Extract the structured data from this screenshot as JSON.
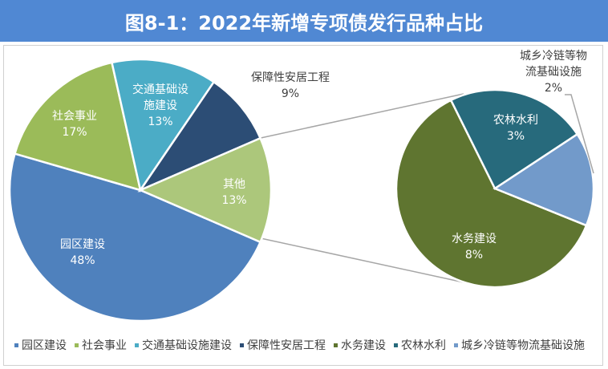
{
  "title": "图8-1：2022年新增专项债发行品种占比",
  "chart_data": {
    "type": "pie",
    "subtype": "pie-of-pie",
    "main": [
      {
        "name": "园区建设",
        "value": 48,
        "label": "48%",
        "color": "#4f81bd"
      },
      {
        "name": "社会事业",
        "value": 17,
        "label": "17%",
        "color": "#9bbb59"
      },
      {
        "name": "交通基础设施建设",
        "value": 13,
        "label": "13%",
        "color": "#4bacc6"
      },
      {
        "name": "保障性安居工程",
        "value": 9,
        "label": "9%",
        "color": "#2c4d75"
      },
      {
        "name": "其他",
        "value": 13,
        "label": "13%",
        "color": "#acc77b"
      }
    ],
    "secondary": [
      {
        "name": "水务建设",
        "value": 8,
        "label": "8%",
        "color": "#5f7530"
      },
      {
        "name": "农林水利",
        "value": 3,
        "label": "3%",
        "color": "#276a7c"
      },
      {
        "name": "城乡冷链等物流基础设施",
        "value": 2,
        "label": "2%",
        "color": "#729aca"
      }
    ],
    "data_labels": {
      "园区建设": "园区建设",
      "社会事业": "社会事业",
      "交通": "交通基础设\n施建设",
      "保障": "保障性安居工程",
      "其他": "其他",
      "水务": "水务建设",
      "农林": "农林水利",
      "城乡": "城乡冷链等物\n流基础设施"
    },
    "legend": [
      "园区建设",
      "社会事业",
      "交通基础设施建设",
      "保障性安居工程",
      "水务建设",
      "农林水利",
      "城乡冷链等物流基础设施"
    ],
    "legend_colors": [
      "#4f81bd",
      "#9bbb59",
      "#4bacc6",
      "#2c4d75",
      "#5f7530",
      "#276a7c",
      "#729aca"
    ],
    "legend_position": "bottom"
  }
}
